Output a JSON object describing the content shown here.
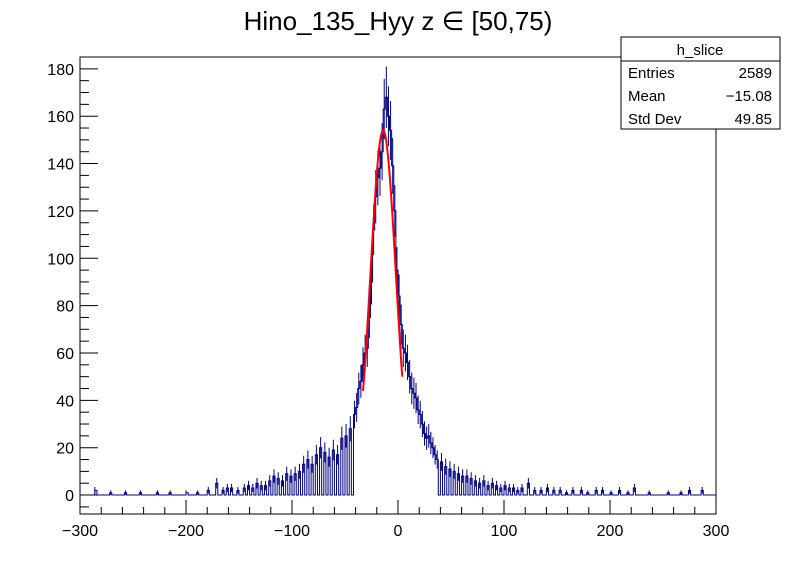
{
  "chart_data": {
    "type": "histogram",
    "title": "Hino_135_Hyy z  ∈ [50,75)",
    "xlabel": "",
    "ylabel": "",
    "xlim": [
      -300,
      300
    ],
    "ylim": [
      -8,
      185
    ],
    "x_ticks": [
      -300,
      -200,
      -100,
      0,
      100,
      200,
      300
    ],
    "x_tick_labels": [
      "−300",
      "−200",
      "−100",
      "0",
      "100",
      "200",
      "300"
    ],
    "y_ticks": [
      0,
      20,
      40,
      60,
      80,
      100,
      120,
      140,
      160,
      180
    ],
    "y_tick_labels": [
      "0",
      "20",
      "40",
      "60",
      "80",
      "100",
      "120",
      "140",
      "160",
      "180"
    ],
    "grid": false,
    "stats_box": {
      "name": "h_slice",
      "rows": [
        {
          "label": "Entries",
          "value": "2589"
        },
        {
          "label": "Mean",
          "value": "−15.08"
        },
        {
          "label": "Std Dev",
          "value": "49.85"
        }
      ]
    },
    "histogram": {
      "name": "h_slice",
      "color": "#000080",
      "bin_width": 2,
      "x_start": -300,
      "x_end": 300,
      "bins": [
        {
          "x": -287,
          "y": 2
        },
        {
          "x": -272,
          "y": 1
        },
        {
          "x": -258,
          "y": 1
        },
        {
          "x": -244,
          "y": 1
        },
        {
          "x": -228,
          "y": 1
        },
        {
          "x": -216,
          "y": 1
        },
        {
          "x": -201,
          "y": 1
        },
        {
          "x": -190,
          "y": 1
        },
        {
          "x": -180,
          "y": 2
        },
        {
          "x": -172,
          "y": 5
        },
        {
          "x": -166,
          "y": 2
        },
        {
          "x": -162,
          "y": 3
        },
        {
          "x": -158,
          "y": 3
        },
        {
          "x": -152,
          "y": 2
        },
        {
          "x": -146,
          "y": 3
        },
        {
          "x": -142,
          "y": 4
        },
        {
          "x": -138,
          "y": 3
        },
        {
          "x": -134,
          "y": 5
        },
        {
          "x": -130,
          "y": 4
        },
        {
          "x": -126,
          "y": 4
        },
        {
          "x": -122,
          "y": 6
        },
        {
          "x": -118,
          "y": 8
        },
        {
          "x": -114,
          "y": 7
        },
        {
          "x": -110,
          "y": 6
        },
        {
          "x": -106,
          "y": 9
        },
        {
          "x": -102,
          "y": 8
        },
        {
          "x": -98,
          "y": 9
        },
        {
          "x": -94,
          "y": 10
        },
        {
          "x": -90,
          "y": 13
        },
        {
          "x": -86,
          "y": 15
        },
        {
          "x": -82,
          "y": 13
        },
        {
          "x": -78,
          "y": 17
        },
        {
          "x": -74,
          "y": 20
        },
        {
          "x": -70,
          "y": 18
        },
        {
          "x": -66,
          "y": 16
        },
        {
          "x": -62,
          "y": 19
        },
        {
          "x": -58,
          "y": 17
        },
        {
          "x": -54,
          "y": 24
        },
        {
          "x": -50,
          "y": 25
        },
        {
          "x": -46,
          "y": 28
        },
        {
          "x": -42,
          "y": 34
        },
        {
          "x": -40,
          "y": 37
        },
        {
          "x": -38,
          "y": 45
        },
        {
          "x": -36,
          "y": 48
        },
        {
          "x": -34,
          "y": 55
        },
        {
          "x": -32,
          "y": 60
        },
        {
          "x": -30,
          "y": 62
        },
        {
          "x": -28,
          "y": 75
        },
        {
          "x": -26,
          "y": 90
        },
        {
          "x": -24,
          "y": 112
        },
        {
          "x": -22,
          "y": 126
        },
        {
          "x": -20,
          "y": 134
        },
        {
          "x": -18,
          "y": 138
        },
        {
          "x": -16,
          "y": 145
        },
        {
          "x": -14,
          "y": 163
        },
        {
          "x": -12,
          "y": 168
        },
        {
          "x": -10,
          "y": 160
        },
        {
          "x": -8,
          "y": 154
        },
        {
          "x": -6,
          "y": 139
        },
        {
          "x": -4,
          "y": 120
        },
        {
          "x": -2,
          "y": 95
        },
        {
          "x": 0,
          "y": 84
        },
        {
          "x": 2,
          "y": 72
        },
        {
          "x": 4,
          "y": 62
        },
        {
          "x": 6,
          "y": 60
        },
        {
          "x": 8,
          "y": 56
        },
        {
          "x": 10,
          "y": 50
        },
        {
          "x": 12,
          "y": 45
        },
        {
          "x": 14,
          "y": 43
        },
        {
          "x": 16,
          "y": 41
        },
        {
          "x": 18,
          "y": 36
        },
        {
          "x": 20,
          "y": 34
        },
        {
          "x": 22,
          "y": 30
        },
        {
          "x": 24,
          "y": 26
        },
        {
          "x": 26,
          "y": 24
        },
        {
          "x": 28,
          "y": 25
        },
        {
          "x": 30,
          "y": 22
        },
        {
          "x": 32,
          "y": 20
        },
        {
          "x": 34,
          "y": 17
        },
        {
          "x": 36,
          "y": 15
        },
        {
          "x": 40,
          "y": 14
        },
        {
          "x": 44,
          "y": 12
        },
        {
          "x": 48,
          "y": 11
        },
        {
          "x": 52,
          "y": 10
        },
        {
          "x": 56,
          "y": 9
        },
        {
          "x": 60,
          "y": 8
        },
        {
          "x": 64,
          "y": 8
        },
        {
          "x": 68,
          "y": 7
        },
        {
          "x": 72,
          "y": 6
        },
        {
          "x": 76,
          "y": 5
        },
        {
          "x": 80,
          "y": 6
        },
        {
          "x": 84,
          "y": 4
        },
        {
          "x": 88,
          "y": 5
        },
        {
          "x": 92,
          "y": 4
        },
        {
          "x": 96,
          "y": 3
        },
        {
          "x": 100,
          "y": 4
        },
        {
          "x": 104,
          "y": 3
        },
        {
          "x": 108,
          "y": 3
        },
        {
          "x": 112,
          "y": 2
        },
        {
          "x": 116,
          "y": 3
        },
        {
          "x": 122,
          "y": 5
        },
        {
          "x": 128,
          "y": 2
        },
        {
          "x": 134,
          "y": 2
        },
        {
          "x": 140,
          "y": 3
        },
        {
          "x": 146,
          "y": 2
        },
        {
          "x": 152,
          "y": 2
        },
        {
          "x": 158,
          "y": 1
        },
        {
          "x": 164,
          "y": 2
        },
        {
          "x": 172,
          "y": 2
        },
        {
          "x": 178,
          "y": 1
        },
        {
          "x": 186,
          "y": 2
        },
        {
          "x": 192,
          "y": 2
        },
        {
          "x": 200,
          "y": 1
        },
        {
          "x": 208,
          "y": 2
        },
        {
          "x": 216,
          "y": 1
        },
        {
          "x": 222,
          "y": 3
        },
        {
          "x": 236,
          "y": 1
        },
        {
          "x": 254,
          "y": 1
        },
        {
          "x": 266,
          "y": 1
        },
        {
          "x": 274,
          "y": 2
        },
        {
          "x": 286,
          "y": 2
        }
      ]
    },
    "fit": {
      "type": "gaussian",
      "color": "#ff0000",
      "x_range": [
        -33,
        4
      ],
      "amplitude": 154,
      "mean": -14,
      "sigma": 12
    }
  }
}
